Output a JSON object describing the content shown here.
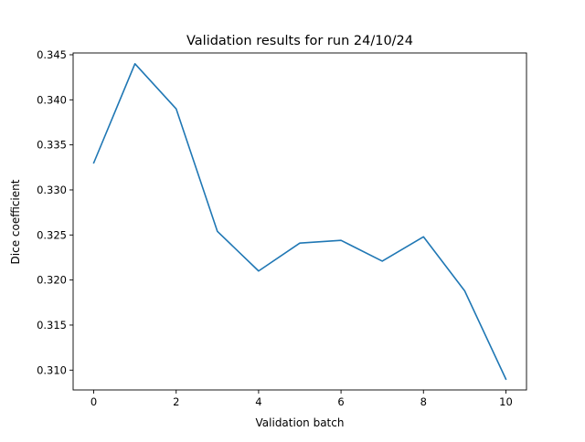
{
  "chart_data": {
    "type": "line",
    "title": "Validation results for run 24/10/24",
    "xlabel": "Validation batch",
    "ylabel": "Dice coefficient",
    "xlim": [
      -0.5,
      10.5
    ],
    "ylim": [
      0.3078,
      0.3452
    ],
    "xticks": [
      0,
      2,
      4,
      6,
      8,
      10
    ],
    "xtick_labels": [
      "0",
      "2",
      "4",
      "6",
      "8",
      "10"
    ],
    "yticks": [
      0.31,
      0.315,
      0.32,
      0.325,
      0.33,
      0.335,
      0.34,
      0.345
    ],
    "ytick_labels": [
      "0.310",
      "0.315",
      "0.320",
      "0.325",
      "0.330",
      "0.335",
      "0.340",
      "0.345"
    ],
    "grid": false,
    "series": [
      {
        "color": "#1f77b4",
        "x": [
          0,
          1,
          2,
          3,
          4,
          5,
          6,
          7,
          8,
          9,
          10
        ],
        "y": [
          0.333,
          0.344,
          0.339,
          0.3254,
          0.321,
          0.3241,
          0.3244,
          0.3221,
          0.3248,
          0.3188,
          0.309
        ]
      }
    ]
  }
}
